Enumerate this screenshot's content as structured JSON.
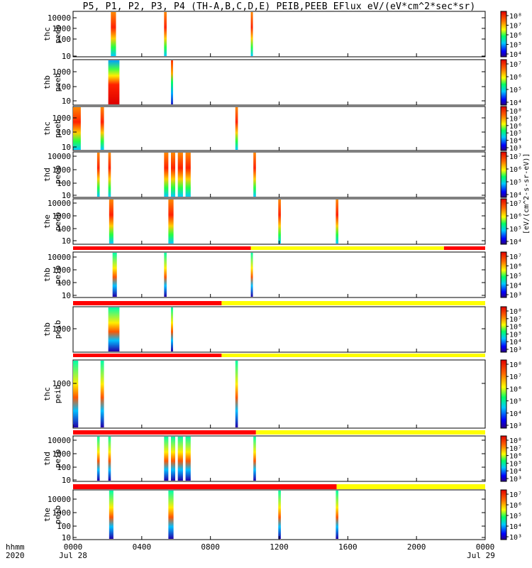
{
  "title": "P5, P1, P2, P3, P4 (TH-A,B,C,D,E) PEIB,PEEB EFlux eV/(eV*cm^2*sec*sr)",
  "colorbar_label": "[eV/(cm^2-s-sr-eV)]",
  "chart_data": {
    "type": "heatmap",
    "x_axis": {
      "range_hours": [
        0,
        24
      ],
      "tick_labels": [
        "0000",
        "0400",
        "0800",
        "1200",
        "1600",
        "2000",
        "0000"
      ],
      "tick_hours": [
        0,
        4,
        8,
        12,
        16,
        20,
        24
      ],
      "row_label_1": "hhmm",
      "row_label_2": "2020",
      "date_start": "Jul 28",
      "date_end": "Jul 29"
    },
    "panels": [
      {
        "probe": "thc",
        "instrument": "peeb",
        "ylabel_1": "thc",
        "ylabel_2": "peeb",
        "yticks": [
          "10000",
          "1000",
          "100",
          "10"
        ],
        "cbar_ticks": [
          "10⁸",
          "10⁷",
          "10⁶",
          "10⁵",
          "10⁴"
        ],
        "bursts": [
          [
            2.2,
            2.5
          ],
          [
            5.3,
            5.45
          ],
          [
            10.35,
            10.45
          ]
        ]
      },
      {
        "probe": "thb",
        "instrument": "peeb",
        "ylabel_1": "thb",
        "ylabel_2": "peeb",
        "yticks": [
          "1000",
          "100",
          "10"
        ],
        "cbar_ticks": [
          "10⁷",
          "10⁶",
          "10⁵",
          "10⁴"
        ],
        "bursts": [
          [
            2.05,
            2.7
          ],
          [
            5.7,
            5.8
          ]
        ]
      },
      {
        "probe": "thc",
        "instrument": "peeb",
        "ylabel_1": "thc",
        "ylabel_2": "peeb",
        "yticks": [
          "1000",
          "100",
          "10"
        ],
        "cbar_ticks": [
          "10⁸",
          "10⁷",
          "10⁶",
          "10⁵",
          "10⁴",
          "10³"
        ],
        "bursts": [
          [
            0.0,
            0.45
          ],
          [
            1.6,
            1.8
          ],
          [
            9.45,
            9.6
          ]
        ]
      },
      {
        "probe": "thd",
        "instrument": "peeb",
        "ylabel_1": "thd",
        "ylabel_2": "peeb",
        "yticks": [
          "10000",
          "1000",
          "100",
          "10"
        ],
        "cbar_ticks": [
          "10⁷",
          "10⁶",
          "10⁵",
          "10⁴"
        ],
        "bursts": [
          [
            1.4,
            1.55
          ],
          [
            2.05,
            2.2
          ],
          [
            5.3,
            5.55
          ],
          [
            5.7,
            5.95
          ],
          [
            6.1,
            6.4
          ],
          [
            6.55,
            6.85
          ],
          [
            10.5,
            10.65
          ]
        ]
      },
      {
        "probe": "the",
        "instrument": "peeb",
        "ylabel_1": "the",
        "ylabel_2": "peeb",
        "yticks": [
          "10000",
          "1000",
          "100",
          "10"
        ],
        "cbar_ticks": [
          "10⁷",
          "10⁶",
          "10⁵",
          "10⁴"
        ],
        "bursts": [
          [
            2.1,
            2.35
          ],
          [
            5.55,
            5.85
          ],
          [
            11.95,
            12.1
          ],
          [
            15.3,
            15.45
          ]
        ]
      },
      {
        "probe": "thb",
        "instrument": "peib",
        "ylabel_1": "thb",
        "ylabel_2": "peib",
        "yticks": [
          "10000",
          "1000",
          "100",
          "10"
        ],
        "cbar_ticks": [
          "10⁷",
          "10⁶",
          "10⁵",
          "10⁴",
          "10³"
        ],
        "bar_switch_hours": [
          10.35,
          21.6
        ],
        "bursts": [
          [
            2.3,
            2.55
          ],
          [
            5.3,
            5.45
          ],
          [
            10.35,
            10.45
          ]
        ]
      },
      {
        "probe": "thb",
        "instrument": "peib",
        "ylabel_1": "thb",
        "ylabel_2": "peib",
        "yticks": [
          "1000"
        ],
        "cbar_ticks": [
          "10⁸",
          "10⁷",
          "10⁶",
          "10⁵",
          "10⁴",
          "10³"
        ],
        "bar_switch_hours": [
          8.65
        ],
        "bursts": [
          [
            2.05,
            2.7
          ],
          [
            5.7,
            5.8
          ]
        ]
      },
      {
        "probe": "thc",
        "instrument": "peib",
        "ylabel_1": "thc",
        "ylabel_2": "peib",
        "yticks": [
          "1000"
        ],
        "cbar_ticks": [
          "10⁸",
          "10⁷",
          "10⁶",
          "10⁵",
          "10⁴",
          "10³"
        ],
        "bar_switch_hours": [
          8.65
        ],
        "bursts": [
          [
            0.0,
            0.3
          ],
          [
            1.6,
            1.8
          ],
          [
            9.45,
            9.6
          ]
        ]
      },
      {
        "probe": "thd",
        "instrument": "peib",
        "ylabel_1": "thd",
        "ylabel_2": "peib",
        "yticks": [
          "10000",
          "1000",
          "100",
          "10"
        ],
        "cbar_ticks": [
          "10⁸",
          "10⁷",
          "10⁶",
          "10⁵",
          "10⁴",
          "10³"
        ],
        "bar_switch_hours": [
          10.65
        ],
        "bursts": [
          [
            1.4,
            1.55
          ],
          [
            2.05,
            2.2
          ],
          [
            5.3,
            5.55
          ],
          [
            5.7,
            5.95
          ],
          [
            6.1,
            6.4
          ],
          [
            6.55,
            6.85
          ],
          [
            10.5,
            10.65
          ]
        ]
      },
      {
        "probe": "the",
        "instrument": "peib",
        "ylabel_1": "the",
        "ylabel_2": "peib",
        "yticks": [
          "10000",
          "1000",
          "100",
          "10"
        ],
        "cbar_ticks": [
          "10⁷",
          "10⁶",
          "10⁵",
          "10⁴",
          "10³"
        ],
        "bar_switch_hours": [
          15.35
        ],
        "bursts": [
          [
            2.1,
            2.35
          ],
          [
            5.55,
            5.85
          ],
          [
            11.95,
            12.1
          ],
          [
            15.3,
            15.45
          ]
        ]
      }
    ],
    "flag_colors": {
      "on": "#ff0000",
      "off": "#ffff00"
    }
  }
}
